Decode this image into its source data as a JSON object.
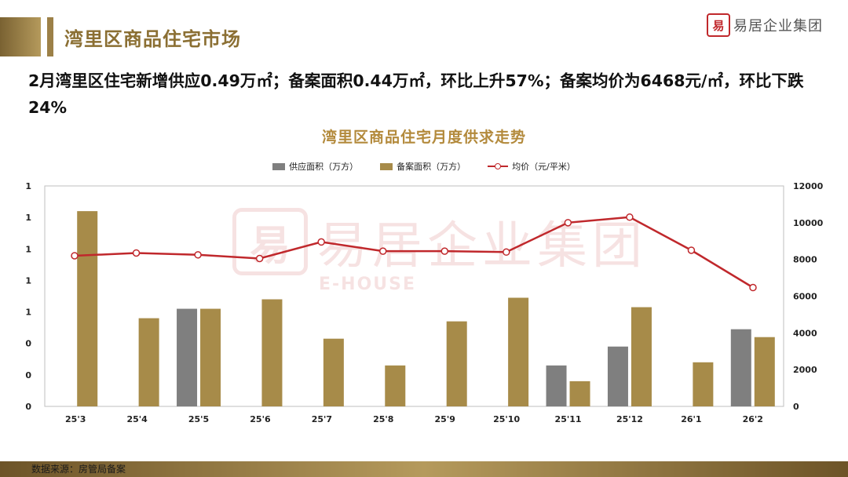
{
  "header": {
    "title": "湾里区商品住宅市场",
    "logo_mark": "易",
    "logo_text": "易居企业集团"
  },
  "headline": "2月湾里区住宅新增供应0.49万㎡；备案面积0.44万㎡，环比上升57%；备案均价为6468元/㎡，环比下跌24%",
  "watermark": {
    "cn": "易居企业集团",
    "en": "E-HOUSE",
    "mark": "易"
  },
  "footer": {
    "source": "数据来源：房管局备案"
  },
  "colors": {
    "supply": "#7f7f7f",
    "filing": "#a78b49",
    "price": "#c0282c",
    "accent": "#8b6f33"
  },
  "chart_data": {
    "type": "bar",
    "title": "湾里区商品住宅月度供求走势",
    "categories": [
      "25'3",
      "25'4",
      "25'5",
      "25'6",
      "25'7",
      "25'8",
      "25'9",
      "25'10",
      "25'11",
      "25'12",
      "26'1",
      "26'2"
    ],
    "series": [
      {
        "name": "供应面积（万方）",
        "type": "bar",
        "axis": "left",
        "color": "#7f7f7f",
        "values": [
          null,
          null,
          0.62,
          null,
          null,
          null,
          null,
          null,
          0.26,
          0.38,
          null,
          0.49
        ]
      },
      {
        "name": "备案面积（万方）",
        "type": "bar",
        "axis": "left",
        "color": "#a78b49",
        "values": [
          1.24,
          0.56,
          0.62,
          0.68,
          0.43,
          0.26,
          0.54,
          0.69,
          0.16,
          0.63,
          0.28,
          0.44
        ]
      },
      {
        "name": "均价（元/平米）",
        "type": "line",
        "axis": "right",
        "color": "#c0282c",
        "values": [
          8200,
          8350,
          8250,
          8050,
          8950,
          8450,
          8450,
          8400,
          10000,
          10300,
          8500,
          6468
        ]
      }
    ],
    "left_axis": {
      "ticks": [
        "0",
        "0",
        "0",
        "1",
        "1",
        "1",
        "1",
        "1"
      ],
      "ylim": [
        0,
        1.4
      ]
    },
    "right_axis": {
      "ticks": [
        "0",
        "2000",
        "4000",
        "6000",
        "8000",
        "10000",
        "12000"
      ],
      "ylim": [
        0,
        12000
      ]
    },
    "legend_position": "top-center",
    "grid": false
  }
}
